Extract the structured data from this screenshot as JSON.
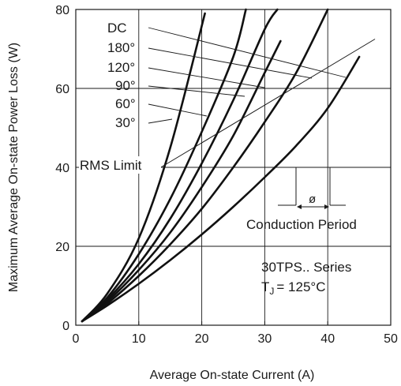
{
  "chart_data": {
    "type": "line",
    "xlabel": "Average On-state Current (A)",
    "ylabel": "Maximum Average On-state Power Loss (W)",
    "xlim": [
      0,
      50
    ],
    "ylim": [
      0,
      80
    ],
    "xticks": [
      "0",
      "10",
      "20",
      "30",
      "40",
      "50"
    ],
    "yticks": [
      "0",
      "20",
      "40",
      "60",
      "80"
    ],
    "grid": true,
    "series": [
      {
        "name": "30°",
        "x": [
          1,
          5,
          10,
          15,
          20,
          25,
          30,
          35,
          40,
          45
        ],
        "y": [
          1,
          5,
          10.5,
          16.5,
          23,
          30,
          37.5,
          45.5,
          55,
          68
        ]
      },
      {
        "name": "60°",
        "x": [
          1,
          5,
          10,
          15,
          20,
          25,
          30,
          35,
          40
        ],
        "y": [
          1,
          5.5,
          12.5,
          20.5,
          29.5,
          40,
          51.5,
          64,
          80
        ]
      },
      {
        "name": "90°",
        "x": [
          1,
          5,
          10,
          15,
          20,
          25,
          30,
          32.5
        ],
        "y": [
          1,
          6,
          14,
          23.5,
          35,
          48,
          64,
          72
        ]
      },
      {
        "name": "120°",
        "x": [
          1,
          5,
          10,
          15,
          20,
          25,
          30,
          32
        ],
        "y": [
          1,
          6.5,
          15.5,
          27,
          41,
          57,
          75,
          80
        ]
      },
      {
        "name": "180°",
        "x": [
          1,
          5,
          10,
          15,
          20,
          25,
          27
        ],
        "y": [
          1,
          7,
          18,
          32,
          49,
          68,
          80
        ]
      },
      {
        "name": "DC",
        "x": [
          1,
          5,
          10,
          15,
          20.5
        ],
        "y": [
          1,
          8,
          22,
          45,
          79
        ]
      }
    ],
    "rms_limit": {
      "label": "RMS Limit",
      "x": [
        13.5,
        47.5
      ],
      "y": [
        40,
        72.5
      ]
    },
    "curve_labels": [
      "DC",
      "180°",
      "120°",
      "90°",
      "60°",
      "30°"
    ],
    "annotations": {
      "conduction_period": "Conduction Period",
      "phi_symbol": "ø",
      "device": "30TPS.. Series",
      "tj_prefix": "T",
      "tj_subscript": "J",
      "tj_value": "= 125°C"
    }
  }
}
